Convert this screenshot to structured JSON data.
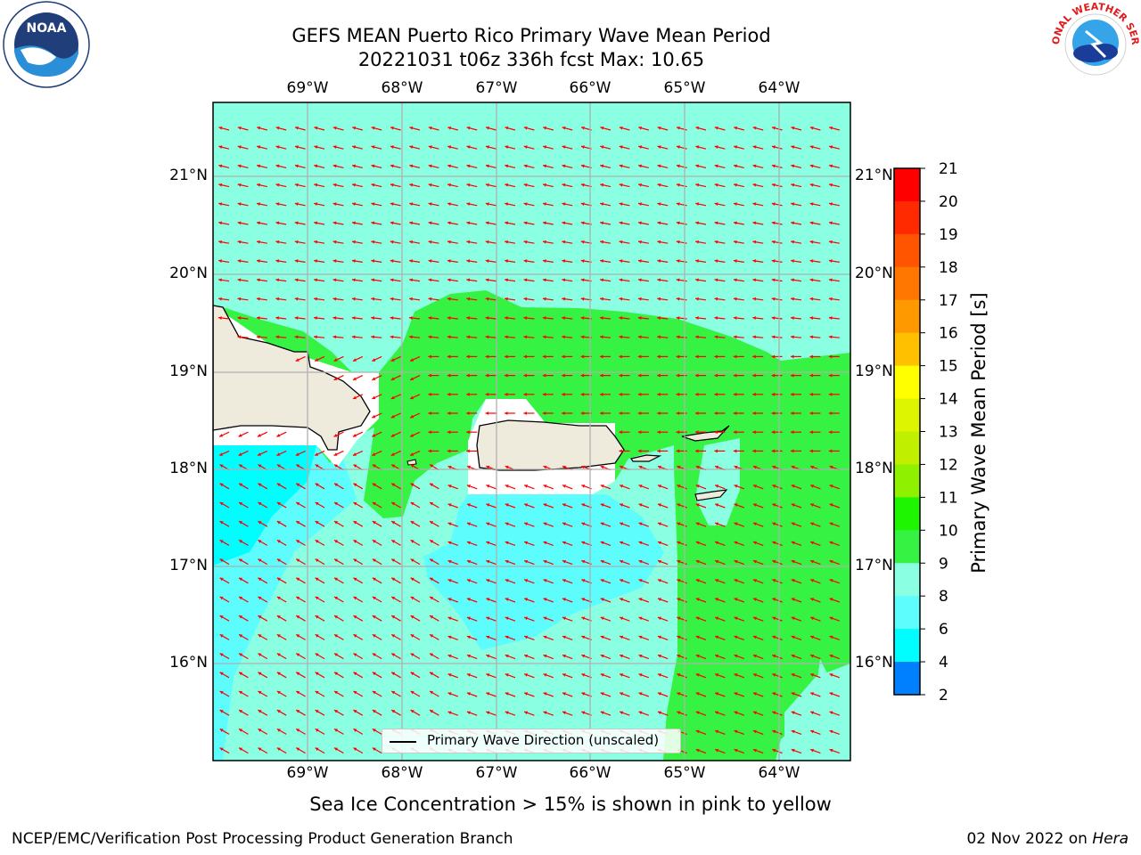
{
  "header": {
    "title_line1": "GEFS MEAN Puerto Rico Primary Wave Mean Period",
    "title_line2": "20221031 t06z 336h fcst   Max: 10.65"
  },
  "map": {
    "lon_labels": [
      "69°W",
      "68°W",
      "67°W",
      "66°W",
      "65°W",
      "64°W"
    ],
    "lat_labels": [
      "21°N",
      "20°N",
      "19°N",
      "18°N",
      "17°N",
      "16°N"
    ],
    "legend_label": "Primary Wave Direction (unscaled)",
    "colors": {
      "land": "#efebdc",
      "range_8_9": "#5dfdfd",
      "range_9_10": "#8affe2",
      "range_10_11": "#35f243",
      "range_6_8": "#00fefe",
      "arrow": "#ff0000",
      "grid": "#b0b0b0"
    }
  },
  "colorbar": {
    "title": "Primary Wave Mean Period [s]",
    "ticks": [
      "21",
      "20",
      "19",
      "18",
      "17",
      "16",
      "15",
      "14",
      "13",
      "12",
      "11",
      "10",
      "9",
      "8",
      "6",
      "4",
      "2"
    ],
    "colors": [
      "#ff0000",
      "#ff2a00",
      "#ff5500",
      "#ff7700",
      "#ff9900",
      "#ffc000",
      "#ffff00",
      "#ddf500",
      "#c0f000",
      "#8ff000",
      "#1ef500",
      "#35f243",
      "#8affe2",
      "#5dfdfd",
      "#00fefe",
      "#0080ff",
      "#0000ff"
    ]
  },
  "footer": {
    "sea_ice_note": "Sea Ice Concentration > 15% is shown in pink to yellow",
    "branch": "NCEP/EMC/Verification Post Processing Product Generation Branch",
    "date": "02 Nov 2022 on ",
    "machine": "Hera"
  },
  "logos": {
    "left_text": "NOAA",
    "right_text": "NATIONAL WEATHER SERVICE"
  }
}
